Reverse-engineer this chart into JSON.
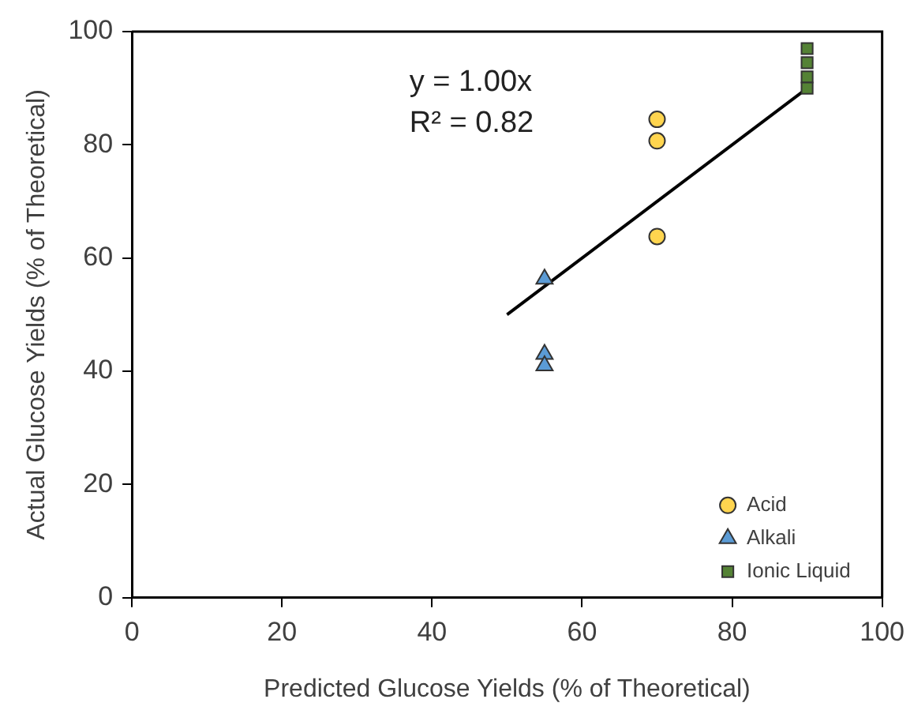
{
  "chart_data": {
    "type": "scatter",
    "xlabel": "Predicted Glucose Yields (% of Theoretical)",
    "ylabel": "Actual Glucose Yields (% of Theoretical)",
    "xlim": [
      0,
      100
    ],
    "ylim": [
      0,
      100
    ],
    "xticks": [
      0,
      20,
      40,
      60,
      80,
      100
    ],
    "yticks": [
      0,
      20,
      40,
      60,
      80,
      100
    ],
    "grid": false,
    "legend": "bottom right",
    "annotations": [
      "y = 1.00x",
      "R² = 0.82"
    ],
    "series": [
      {
        "name": "Acid",
        "color": "#ffd54f",
        "marker": "circle",
        "x": [
          70,
          70,
          70
        ],
        "values": [
          84.5,
          80.7,
          63.8
        ]
      },
      {
        "name": "Alkali",
        "color": "#5b9bd5",
        "marker": "triangle",
        "x": [
          55,
          55,
          55
        ],
        "values": [
          56.3,
          43,
          41
        ]
      },
      {
        "name": "Ionic Liquid",
        "color": "#548235",
        "marker": "square",
        "x": [
          90,
          90,
          90,
          90
        ],
        "values": [
          97,
          94.5,
          92,
          90
        ]
      },
      {
        "type": "line",
        "color": "#000000",
        "marker": "none",
        "x": [
          50,
          90
        ],
        "values": [
          50,
          90
        ]
      }
    ]
  }
}
